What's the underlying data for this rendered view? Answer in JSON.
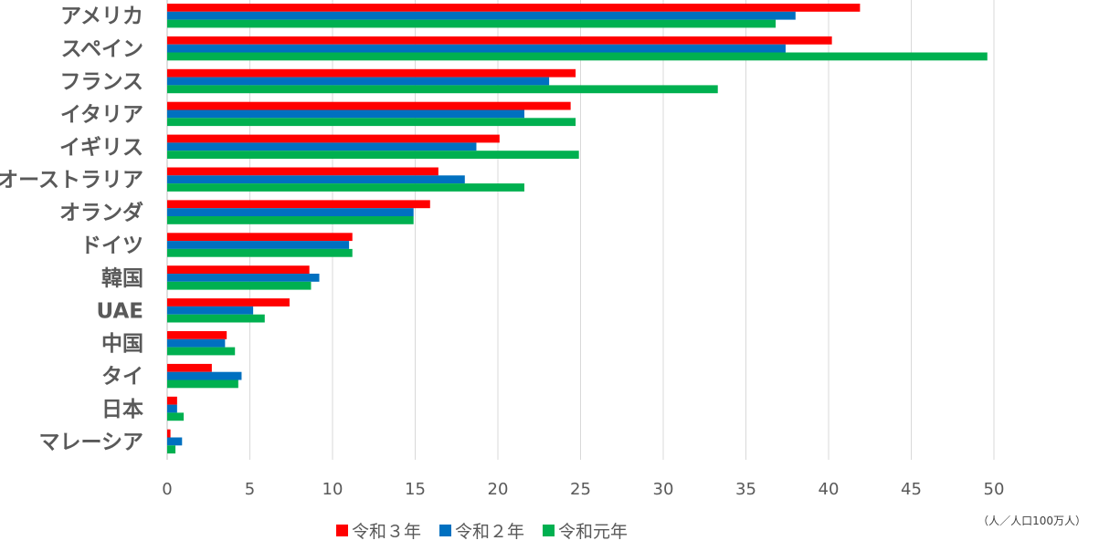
{
  "chart_data": {
    "type": "bar",
    "orientation": "horizontal",
    "categories": [
      "アメリカ",
      "スペイン",
      "フランス",
      "イタリア",
      "イギリス",
      "オーストラリア",
      "オランダ",
      "ドイツ",
      "韓国",
      "UAE",
      "中国",
      "タイ",
      "日本",
      "マレーシア"
    ],
    "series": [
      {
        "name": "令和３年",
        "color": "#ff0000",
        "values": [
          41.9,
          40.2,
          24.7,
          24.4,
          20.1,
          16.4,
          15.9,
          11.2,
          8.6,
          7.4,
          3.6,
          2.7,
          0.6,
          0.2
        ]
      },
      {
        "name": "令和２年",
        "color": "#0070c0",
        "values": [
          38.0,
          37.4,
          23.1,
          21.6,
          18.7,
          18.0,
          14.9,
          11.0,
          9.2,
          5.2,
          3.5,
          4.5,
          0.6,
          0.9
        ]
      },
      {
        "name": "令和元年",
        "color": "#00b050",
        "values": [
          36.8,
          49.6,
          33.3,
          24.7,
          24.9,
          21.6,
          14.9,
          11.2,
          8.7,
          5.9,
          4.1,
          4.3,
          1.0,
          0.5
        ]
      }
    ],
    "xlim": [
      0,
      50
    ],
    "xticks": [
      "0",
      "5",
      "10",
      "15",
      "20",
      "25",
      "30",
      "35",
      "40",
      "45",
      "50"
    ],
    "grid": true,
    "legend_position": "bottom",
    "unit_note": "（人／人口100万人）"
  }
}
